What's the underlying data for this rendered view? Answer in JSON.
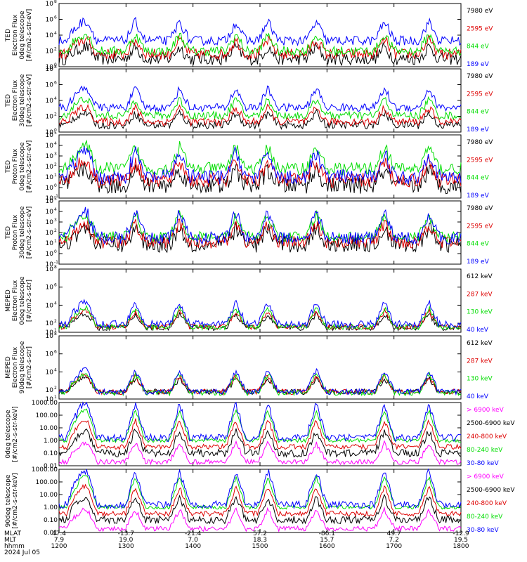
{
  "figure": {
    "footer": {
      "row_labels": [
        "MLAT",
        "MLT",
        "hhmm",
        "2024 Jul 05"
      ],
      "mlat": [
        "47.4",
        "-13.7",
        "-21.4",
        "57.2",
        "-86.1",
        "49.7",
        "-12.9"
      ],
      "mlt": [
        "7.9",
        "19.0",
        "7.0",
        "18.3",
        "15.7",
        "7.2",
        "19.5"
      ],
      "hhmm": [
        "1200",
        "1300",
        "1400",
        "1500",
        "1600",
        "1700",
        "1800"
      ]
    }
  },
  "colors": {
    "black": "#000000",
    "red": "#dd0000",
    "green": "#00dd00",
    "blue": "#0000ff",
    "magenta": "#ff00ff"
  },
  "chart_data": [
    {
      "type": "line",
      "ylabel": [
        "TED",
        "Electron Flux",
        "0deg telescope",
        "[#/cm2-s-str-eV]"
      ],
      "yscale": "log",
      "yticks": [
        "10^0",
        "10^2",
        "10^4",
        "10^6",
        "10^8"
      ],
      "ylim_exp": [
        0,
        8
      ],
      "x_range": [
        "1200",
        "1800"
      ],
      "series": [
        {
          "name": "7980 eV",
          "color": "black",
          "base": 1.0,
          "spread": 0.8
        },
        {
          "name": "2595 eV",
          "color": "red",
          "base": 1.6,
          "spread": 0.7
        },
        {
          "name": "844 eV",
          "color": "green",
          "base": 2.0,
          "spread": 0.6
        },
        {
          "name": "189 eV",
          "color": "blue",
          "base": 3.3,
          "spread": 0.6
        }
      ]
    },
    {
      "type": "line",
      "ylabel": [
        "TED",
        "Electron Flux",
        "30deg telescope",
        "[#/cm2-s-str-eV]"
      ],
      "yscale": "log",
      "yticks": [
        "10^0",
        "10^2",
        "10^4",
        "10^6",
        "10^8"
      ],
      "ylim_exp": [
        0,
        8
      ],
      "series": [
        {
          "name": "7980 eV",
          "color": "black",
          "base": 0.9,
          "spread": 0.5
        },
        {
          "name": "2595 eV",
          "color": "red",
          "base": 1.3,
          "spread": 0.5
        },
        {
          "name": "844 eV",
          "color": "green",
          "base": 2.1,
          "spread": 0.5
        },
        {
          "name": "189 eV",
          "color": "blue",
          "base": 3.1,
          "spread": 0.5
        }
      ]
    },
    {
      "type": "line",
      "ylabel": [
        "TED",
        "Proton Flux",
        "0deg telescope",
        "[#/cm2-s-str-eV]"
      ],
      "yscale": "log",
      "yticks": [
        "10^-1",
        "10^0",
        "10^1",
        "10^2",
        "10^3",
        "10^4",
        "10^5"
      ],
      "ylim_exp": [
        -1,
        5
      ],
      "series": [
        {
          "name": "7980 eV",
          "color": "black",
          "base": 0.2,
          "spread": 0.8
        },
        {
          "name": "2595 eV",
          "color": "red",
          "base": 0.7,
          "spread": 0.7
        },
        {
          "name": "844 eV",
          "color": "green",
          "base": 1.8,
          "spread": 0.6
        },
        {
          "name": "189 eV",
          "color": "blue",
          "base": 1.0,
          "spread": 0.7
        }
      ]
    },
    {
      "type": "line",
      "ylabel": [
        "TED",
        "Proton Flux",
        "30deg telescope",
        "[#/cm2-s-str-eV]"
      ],
      "yscale": "log",
      "yticks": [
        "10^-1",
        "10^0",
        "10^1",
        "10^2",
        "10^3",
        "10^4",
        "10^5"
      ],
      "ylim_exp": [
        -1,
        5
      ],
      "series": [
        {
          "name": "7980 eV",
          "color": "black",
          "base": 0.9,
          "spread": 0.8
        },
        {
          "name": "2595 eV",
          "color": "red",
          "base": 1.1,
          "spread": 0.6
        },
        {
          "name": "844 eV",
          "color": "green",
          "base": 1.6,
          "spread": 0.5
        },
        {
          "name": "189 eV",
          "color": "blue",
          "base": 1.5,
          "spread": 0.6
        }
      ]
    },
    {
      "type": "line",
      "ylabel": [
        "MEPED",
        "Electron Flux",
        "0deg telescope",
        "[#/cm2-s-str]"
      ],
      "yscale": "log",
      "yticks": [
        "10^1",
        "10^2",
        "10^4",
        "10^6",
        "10^8"
      ],
      "ylim_exp": [
        1,
        8
      ],
      "series": [
        {
          "name": "612 keV",
          "color": "black",
          "base": 1.5,
          "spread": 0.3
        },
        {
          "name": "287 keV",
          "color": "red",
          "base": 1.6,
          "spread": 0.3
        },
        {
          "name": "130 keV",
          "color": "green",
          "base": 1.6,
          "spread": 0.3
        },
        {
          "name": "40 keV",
          "color": "blue",
          "base": 1.9,
          "spread": 0.4
        }
      ]
    },
    {
      "type": "line",
      "ylabel": [
        "MEPED",
        "Electron Flux",
        "90deg telescope",
        "[#/cm2-s-str]"
      ],
      "yscale": "log",
      "yticks": [
        "10^1",
        "10^2",
        "10^4",
        "10^6",
        "10^8"
      ],
      "ylim_exp": [
        1,
        8
      ],
      "series": [
        {
          "name": "612 keV",
          "color": "black",
          "base": 1.8,
          "spread": 0.3
        },
        {
          "name": "287 keV",
          "color": "red",
          "base": 1.8,
          "spread": 0.3
        },
        {
          "name": "130 keV",
          "color": "green",
          "base": 1.7,
          "spread": 0.3
        },
        {
          "name": "40 keV",
          "color": "blue",
          "base": 1.8,
          "spread": 0.3
        }
      ]
    },
    {
      "type": "line",
      "ylabel": [
        "0deg telescope",
        "[#/cm2-s-str-keV]"
      ],
      "yscale": "log",
      "yticks": [
        "0.01",
        "0.10",
        "1.00",
        "10.00",
        "100.00",
        "1000.00"
      ],
      "ylim_exp": [
        -2,
        3
      ],
      "series": [
        {
          "name": "> 6900 keV",
          "color": "magenta",
          "base": -1.7,
          "spread": 0.2
        },
        {
          "name": "2500-6900 keV",
          "color": "black",
          "base": -1.0,
          "spread": 0.3
        },
        {
          "name": "240-800 keV",
          "color": "red",
          "base": -0.5,
          "spread": 0.2
        },
        {
          "name": "80-240 keV",
          "color": "green",
          "base": 0.0,
          "spread": 0.15
        },
        {
          "name": "30-80 keV",
          "color": "blue",
          "base": 0.2,
          "spread": 0.3
        }
      ]
    },
    {
      "type": "line",
      "ylabel": [
        "90deg telescope",
        "[#/cm2-s-str-keV]"
      ],
      "yscale": "log",
      "yticks": [
        "0.01",
        "0.10",
        "1.00",
        "10.00",
        "100.00",
        "1000.00"
      ],
      "ylim_exp": [
        -2,
        3
      ],
      "series": [
        {
          "name": "> 6900 keV",
          "color": "magenta",
          "base": -1.7,
          "spread": 0.2
        },
        {
          "name": "2500-6900 keV",
          "color": "black",
          "base": -1.0,
          "spread": 0.3
        },
        {
          "name": "240-800 keV",
          "color": "red",
          "base": -0.5,
          "spread": 0.2
        },
        {
          "name": "80-240 keV",
          "color": "green",
          "base": 0.0,
          "spread": 0.15
        },
        {
          "name": "30-80 keV",
          "color": "blue",
          "base": 0.2,
          "spread": 0.3
        }
      ]
    }
  ]
}
